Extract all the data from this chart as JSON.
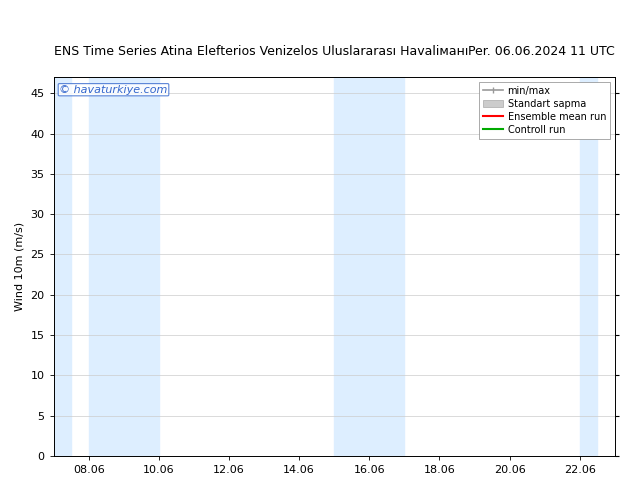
{
  "title_left": "ENS Time Series Atina Elefterios Venizelos Uluslararası Havaliманı",
  "title_right": "Per. 06.06.2024 11 UTC",
  "ylabel": "Wind 10m (m/s)",
  "ylim": [
    0,
    47
  ],
  "yticks": [
    0,
    5,
    10,
    15,
    20,
    25,
    30,
    35,
    40,
    45
  ],
  "shade_bands": [
    {
      "start_day": 7.0,
      "end_day": 7.5
    },
    {
      "start_day": 8.0,
      "end_day": 10.0
    },
    {
      "start_day": 15.0,
      "end_day": 17.0
    },
    {
      "start_day": 22.0,
      "end_day": 22.5
    }
  ],
  "shade_color": "#ddeeff",
  "background_color": "#ffffff",
  "plot_bg_color": "#ffffff",
  "grid_color": "#cccccc",
  "watermark": "© havaturkiye.com",
  "watermark_color": "#3366cc",
  "legend_items": [
    {
      "label": "min/max",
      "color": "#999999",
      "type": "hlines"
    },
    {
      "label": "Standart sapma",
      "color": "#cccccc",
      "type": "fill"
    },
    {
      "label": "Ensemble mean run",
      "color": "#ff0000",
      "type": "line"
    },
    {
      "label": "Controll run",
      "color": "#00aa00",
      "type": "line"
    }
  ],
  "xtick_labels": [
    "08.06",
    "10.06",
    "12.06",
    "14.06",
    "16.06",
    "18.06",
    "20.06",
    "22.06"
  ],
  "xtick_days": [
    8,
    10,
    12,
    14,
    16,
    18,
    20,
    22
  ],
  "start_day": 7,
  "end_day": 23,
  "title_fontsize": 9,
  "axis_fontsize": 8,
  "tick_fontsize": 8,
  "legend_fontsize": 7
}
